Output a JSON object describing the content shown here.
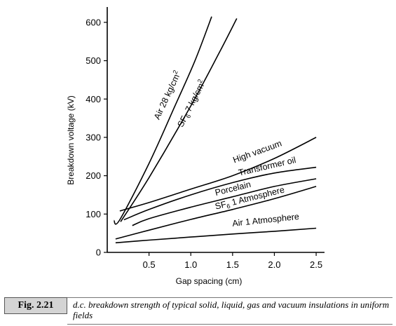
{
  "chart_data": {
    "type": "line",
    "xlabel": "Gap spacing (cm)",
    "ylabel": "Breakdown voltage (kV)",
    "xlim": [
      0,
      2.6
    ],
    "ylim": [
      0,
      640
    ],
    "xticks": [
      0.5,
      1.0,
      1.5,
      2.0,
      2.5
    ],
    "xtick_labels": [
      "0.5",
      "1.0",
      "1.5",
      "2.0",
      "2.5"
    ],
    "yticks": [
      0,
      100,
      200,
      300,
      400,
      500,
      600
    ],
    "ytick_labels": [
      "0",
      "100",
      "200",
      "300",
      "400",
      "500",
      "600"
    ],
    "grid": false,
    "legend": "none (labels placed on curves)",
    "series": [
      {
        "id": "air28",
        "name": "Air 28 kg/cm²",
        "label_main": "Air 28 kg/cm",
        "label_sup": "2",
        "points": [
          [
            0.08,
            83
          ],
          [
            0.15,
            85
          ],
          [
            0.5,
            232
          ],
          [
            0.8,
            377
          ],
          [
            1.05,
            500
          ],
          [
            1.25,
            615
          ]
        ]
      },
      {
        "id": "sf6_7",
        "name": "SF6 7 kg/cm²",
        "label_main": "SF",
        "label_sub": "6",
        "label_rest": " 7 kg/cm",
        "label_sup": "2",
        "points": [
          [
            0.16,
            80
          ],
          [
            0.5,
            195
          ],
          [
            1.0,
            382
          ],
          [
            1.35,
            525
          ],
          [
            1.55,
            610
          ]
        ]
      },
      {
        "id": "highvac",
        "name": "High vacuum",
        "label_main": "High vacuum",
        "points": [
          [
            0.15,
            108
          ],
          [
            0.5,
            130
          ],
          [
            1.0,
            165
          ],
          [
            1.5,
            200
          ],
          [
            2.0,
            245
          ],
          [
            2.5,
            300
          ]
        ]
      },
      {
        "id": "oil",
        "name": "Transformer oil",
        "label_main": "Transformer oil",
        "points": [
          [
            0.2,
            85
          ],
          [
            0.5,
            112
          ],
          [
            1.0,
            150
          ],
          [
            1.5,
            182
          ],
          [
            2.0,
            207
          ],
          [
            2.5,
            222
          ]
        ]
      },
      {
        "id": "porcelain",
        "name": "Porcelain",
        "label_main": "Porcelain",
        "points": [
          [
            0.3,
            70
          ],
          [
            0.5,
            88
          ],
          [
            1.0,
            118
          ],
          [
            1.5,
            145
          ],
          [
            2.0,
            172
          ],
          [
            2.5,
            192
          ]
        ]
      },
      {
        "id": "sf6_1",
        "name": "SF6 1 Atmosphere",
        "label_main": "SF",
        "label_sub": "6",
        "label_rest": " 1 Atmosphere",
        "points": [
          [
            0.1,
            35
          ],
          [
            0.5,
            58
          ],
          [
            1.0,
            86
          ],
          [
            1.5,
            112
          ],
          [
            2.0,
            140
          ],
          [
            2.5,
            172
          ]
        ]
      },
      {
        "id": "air1",
        "name": "Air 1 Atmosphere",
        "label_main": "Air 1 Atmosphere",
        "points": [
          [
            0.1,
            25
          ],
          [
            0.5,
            32
          ],
          [
            1.0,
            40
          ],
          [
            1.5,
            48
          ],
          [
            2.0,
            55
          ],
          [
            2.5,
            63
          ]
        ]
      }
    ]
  },
  "caption": {
    "label": "Fig. 2.21",
    "text": "d.c. breakdown strength of typical solid, liquid, gas and vacuum insulations in uniform fields"
  }
}
